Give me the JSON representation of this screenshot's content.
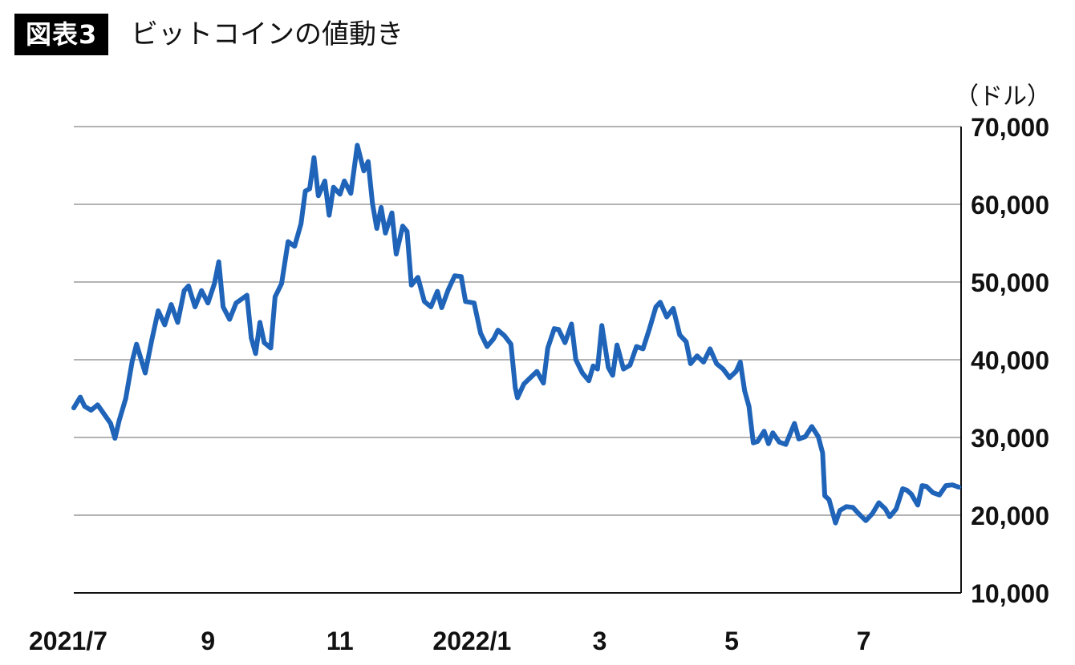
{
  "figure": {
    "badge": "図表3",
    "title": "ビットコインの値動き"
  },
  "chart_data": {
    "type": "line",
    "unit_label": "（ドル）",
    "xlabel": "",
    "ylabel": "",
    "ylim": [
      10000,
      70000
    ],
    "yticks": [
      10000,
      20000,
      30000,
      40000,
      50000,
      60000,
      70000
    ],
    "ytick_labels": [
      "10,000",
      "20,000",
      "30,000",
      "40,000",
      "50,000",
      "60,000",
      "70,000"
    ],
    "y_axis_side": "right",
    "grid": true,
    "x_start": "2021-07-01",
    "x_end": "2022-08-15",
    "xtick_dates": [
      "2021-07-01",
      "2021-09-01",
      "2021-11-01",
      "2022-01-01",
      "2022-03-01",
      "2022-05-01",
      "2022-07-01"
    ],
    "xtick_labels": [
      "2021/7",
      "9",
      "11",
      "2022/1",
      "3",
      "5",
      "7"
    ],
    "series": [
      {
        "color": "#1f64b8",
        "points": [
          [
            "2021-07-01",
            33800
          ],
          [
            "2021-07-04",
            35200
          ],
          [
            "2021-07-06",
            34000
          ],
          [
            "2021-07-09",
            33500
          ],
          [
            "2021-07-12",
            34200
          ],
          [
            "2021-07-15",
            33000
          ],
          [
            "2021-07-18",
            31800
          ],
          [
            "2021-07-20",
            29900
          ],
          [
            "2021-07-22",
            32200
          ],
          [
            "2021-07-25",
            35000
          ],
          [
            "2021-07-28",
            39800
          ],
          [
            "2021-07-30",
            42000
          ],
          [
            "2021-08-03",
            38300
          ],
          [
            "2021-08-06",
            42500
          ],
          [
            "2021-08-09",
            46300
          ],
          [
            "2021-08-12",
            44500
          ],
          [
            "2021-08-15",
            47100
          ],
          [
            "2021-08-18",
            44800
          ],
          [
            "2021-08-21",
            48900
          ],
          [
            "2021-08-23",
            49500
          ],
          [
            "2021-08-26",
            46800
          ],
          [
            "2021-08-29",
            48900
          ],
          [
            "2021-09-01",
            47300
          ],
          [
            "2021-09-04",
            49800
          ],
          [
            "2021-09-06",
            52600
          ],
          [
            "2021-09-08",
            46800
          ],
          [
            "2021-09-11",
            45200
          ],
          [
            "2021-09-14",
            47300
          ],
          [
            "2021-09-17",
            47900
          ],
          [
            "2021-09-19",
            48300
          ],
          [
            "2021-09-21",
            42800
          ],
          [
            "2021-09-23",
            40800
          ],
          [
            "2021-09-25",
            44800
          ],
          [
            "2021-09-27",
            42200
          ],
          [
            "2021-09-30",
            41500
          ],
          [
            "2021-10-02",
            48100
          ],
          [
            "2021-10-05",
            49800
          ],
          [
            "2021-10-08",
            55200
          ],
          [
            "2021-10-11",
            54600
          ],
          [
            "2021-10-14",
            57500
          ],
          [
            "2021-10-16",
            61700
          ],
          [
            "2021-10-18",
            62000
          ],
          [
            "2021-10-20",
            66000
          ],
          [
            "2021-10-22",
            61100
          ],
          [
            "2021-10-25",
            63000
          ],
          [
            "2021-10-27",
            58600
          ],
          [
            "2021-10-29",
            62200
          ],
          [
            "2021-11-01",
            61300
          ],
          [
            "2021-11-03",
            63000
          ],
          [
            "2021-11-06",
            61400
          ],
          [
            "2021-11-09",
            67600
          ],
          [
            "2021-11-12",
            64300
          ],
          [
            "2021-11-14",
            65500
          ],
          [
            "2021-11-16",
            60100
          ],
          [
            "2021-11-18",
            56900
          ],
          [
            "2021-11-20",
            59600
          ],
          [
            "2021-11-22",
            56300
          ],
          [
            "2021-11-25",
            58900
          ],
          [
            "2021-11-27",
            53600
          ],
          [
            "2021-11-30",
            57200
          ],
          [
            "2021-12-02",
            56500
          ],
          [
            "2021-12-04",
            49600
          ],
          [
            "2021-12-07",
            50600
          ],
          [
            "2021-12-10",
            47500
          ],
          [
            "2021-12-13",
            46800
          ],
          [
            "2021-12-16",
            48800
          ],
          [
            "2021-12-18",
            46700
          ],
          [
            "2021-12-21",
            49000
          ],
          [
            "2021-12-24",
            50800
          ],
          [
            "2021-12-27",
            50700
          ],
          [
            "2021-12-29",
            47500
          ],
          [
            "2022-01-02",
            47300
          ],
          [
            "2022-01-05",
            43400
          ],
          [
            "2022-01-08",
            41700
          ],
          [
            "2022-01-11",
            42700
          ],
          [
            "2022-01-13",
            43800
          ],
          [
            "2022-01-16",
            43100
          ],
          [
            "2022-01-19",
            42000
          ],
          [
            "2022-01-21",
            36400
          ],
          [
            "2022-01-22",
            35100
          ],
          [
            "2022-01-25",
            36900
          ],
          [
            "2022-01-28",
            37700
          ],
          [
            "2022-01-31",
            38500
          ],
          [
            "2022-02-03",
            37000
          ],
          [
            "2022-02-05",
            41500
          ],
          [
            "2022-02-08",
            44000
          ],
          [
            "2022-02-10",
            43900
          ],
          [
            "2022-02-13",
            42200
          ],
          [
            "2022-02-16",
            44600
          ],
          [
            "2022-02-18",
            40000
          ],
          [
            "2022-02-21",
            38300
          ],
          [
            "2022-02-24",
            37300
          ],
          [
            "2022-02-26",
            39200
          ],
          [
            "2022-02-28",
            38800
          ],
          [
            "2022-03-02",
            44400
          ],
          [
            "2022-03-05",
            39000
          ],
          [
            "2022-03-07",
            38000
          ],
          [
            "2022-03-09",
            41900
          ],
          [
            "2022-03-12",
            38800
          ],
          [
            "2022-03-15",
            39300
          ],
          [
            "2022-03-18",
            41700
          ],
          [
            "2022-03-21",
            41400
          ],
          [
            "2022-03-24",
            44000
          ],
          [
            "2022-03-27",
            46800
          ],
          [
            "2022-03-29",
            47400
          ],
          [
            "2022-04-01",
            45500
          ],
          [
            "2022-04-04",
            46600
          ],
          [
            "2022-04-07",
            43200
          ],
          [
            "2022-04-10",
            42300
          ],
          [
            "2022-04-12",
            39500
          ],
          [
            "2022-04-15",
            40500
          ],
          [
            "2022-04-18",
            39700
          ],
          [
            "2022-04-21",
            41400
          ],
          [
            "2022-04-24",
            39500
          ],
          [
            "2022-04-27",
            38800
          ],
          [
            "2022-04-30",
            37700
          ],
          [
            "2022-05-03",
            38500
          ],
          [
            "2022-05-05",
            39700
          ],
          [
            "2022-05-07",
            36000
          ],
          [
            "2022-05-09",
            34000
          ],
          [
            "2022-05-11",
            29300
          ],
          [
            "2022-05-13",
            29500
          ],
          [
            "2022-05-16",
            30800
          ],
          [
            "2022-05-18",
            29200
          ],
          [
            "2022-05-20",
            30600
          ],
          [
            "2022-05-23",
            29400
          ],
          [
            "2022-05-26",
            29100
          ],
          [
            "2022-05-30",
            31800
          ],
          [
            "2022-06-01",
            29800
          ],
          [
            "2022-06-04",
            30100
          ],
          [
            "2022-06-07",
            31400
          ],
          [
            "2022-06-10",
            30100
          ],
          [
            "2022-06-12",
            28000
          ],
          [
            "2022-06-13",
            22500
          ],
          [
            "2022-06-15",
            22000
          ],
          [
            "2022-06-18",
            19000
          ],
          [
            "2022-06-20",
            20600
          ],
          [
            "2022-06-23",
            21100
          ],
          [
            "2022-06-26",
            21000
          ],
          [
            "2022-06-29",
            20100
          ],
          [
            "2022-07-02",
            19300
          ],
          [
            "2022-07-05",
            20200
          ],
          [
            "2022-07-08",
            21600
          ],
          [
            "2022-07-11",
            20800
          ],
          [
            "2022-07-13",
            19800
          ],
          [
            "2022-07-16",
            20800
          ],
          [
            "2022-07-19",
            23400
          ],
          [
            "2022-07-21",
            23200
          ],
          [
            "2022-07-23",
            22700
          ],
          [
            "2022-07-26",
            21300
          ],
          [
            "2022-07-28",
            23800
          ],
          [
            "2022-07-30",
            23700
          ],
          [
            "2022-08-02",
            22900
          ],
          [
            "2022-08-05",
            22600
          ],
          [
            "2022-08-08",
            23800
          ],
          [
            "2022-08-11",
            23900
          ],
          [
            "2022-08-14",
            23600
          ]
        ]
      }
    ]
  }
}
